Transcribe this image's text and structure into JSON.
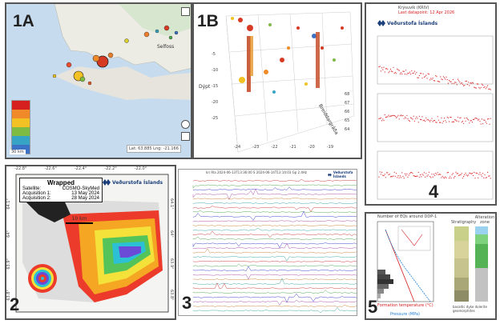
{
  "panels": {
    "p1a": {
      "label": "1A",
      "place": "Selfoss",
      "coords": "Lat: 63.885 Lng: -21.166",
      "scale": "30 km"
    },
    "p1b": {
      "label": "1B",
      "axis_depth": "Dýpt",
      "axis_lat": "Breiddargráða",
      "y_ticks": [
        "-5",
        "-10",
        "-15",
        "-20",
        "-25"
      ],
      "x_ticks": [
        "-24",
        "-23",
        "-22",
        "-21",
        "-20",
        "-19"
      ],
      "lat_ticks": [
        "68",
        "67",
        "66",
        "65",
        "64"
      ]
    },
    "p2": {
      "label": "2",
      "title": "Wrapped",
      "satellite_label": "Satellite:",
      "satellite": "COSMO-SkyMed",
      "acq1_label": "Acquisition 1:",
      "acq1": "13 May 2024",
      "acq2_label": "Acquisition 2:",
      "acq2": "28 May 2024",
      "scale": "10 km",
      "top_ticks": [
        "-22.8°",
        "-22.6°",
        "-22.4°",
        "-22.2°",
        "-22.0°"
      ],
      "left_ticks": [
        "64.1°",
        "64°",
        "63.9°",
        "63.8°"
      ],
      "right_ticks": [
        "64.1°",
        "64°",
        "63.9°",
        "63.8°"
      ]
    },
    "p3": {
      "label": "3",
      "header": "kri Rla 2024-06-13T13:36:00 S 2024-06-14T13:14:03 Gp 2.4Hz"
    },
    "p4": {
      "label": "4",
      "title": "Krýsuvík (KRIV)",
      "subtitle": "Last datapoint: 12 Apr 2026"
    },
    "p5": {
      "label": "5",
      "chart_title": "Number of EQs around DDP-1",
      "strat_header": "Stratigraphy",
      "alt_header": "Alteration zone",
      "temp_axis": "Formation temperature (°C)",
      "pressure_axis": "Pressure (MPa)",
      "basaltic_note": "basaltic dyke dolerite geomorphites"
    }
  },
  "brand": {
    "name": "Veðurstofa Íslands"
  },
  "colors": {
    "accent": "#1b3f7a",
    "red": "#d62020",
    "frame": "#555555"
  }
}
